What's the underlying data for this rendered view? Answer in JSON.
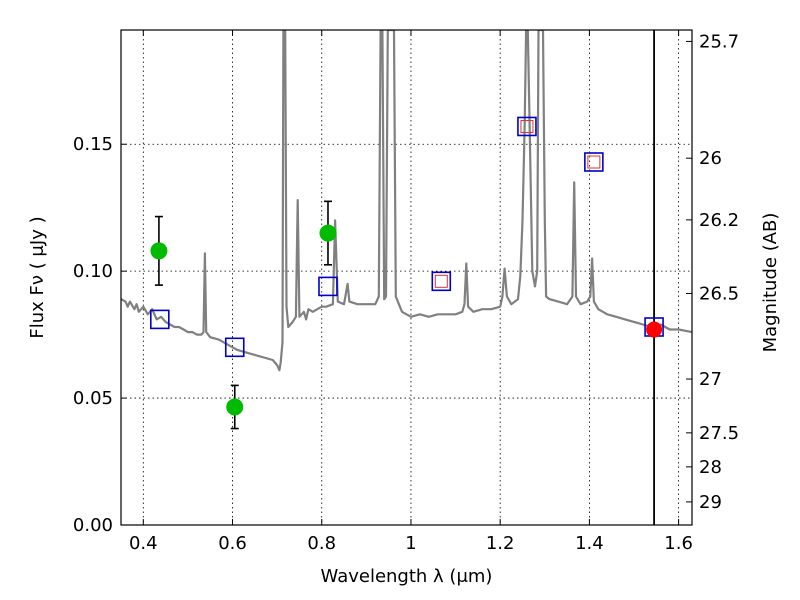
{
  "chart_data": {
    "type": "scatter",
    "xlabel": "Wavelength  λ (μm)",
    "ylabel": "Flux  Fν  ( μJy )",
    "ylabel_right": "Magnitude (AB)",
    "xlim": [
      0.35,
      1.63
    ],
    "ylim": [
      0.0,
      0.195
    ],
    "grid": true,
    "x_ticks": [
      0.4,
      0.6,
      0.8,
      1.0,
      1.2,
      1.4,
      1.6
    ],
    "x_tick_labels": [
      "0.4",
      "0.6",
      "0.8",
      "1",
      "1.2",
      "1.4",
      "1.6"
    ],
    "y_ticks": [
      0.0,
      0.05,
      0.1,
      0.15
    ],
    "y_tick_labels": [
      "0.00",
      "0.05",
      "0.10",
      "0.15"
    ],
    "right_ticks": [
      {
        "label": "25.7",
        "flux": 0.1905
      },
      {
        "label": "26",
        "flux": 0.1445
      },
      {
        "label": "26.2",
        "flux": 0.1202
      },
      {
        "label": "26.5",
        "flux": 0.0912
      },
      {
        "label": "27",
        "flux": 0.0575
      },
      {
        "label": "27.5",
        "flux": 0.0363
      },
      {
        "label": "28",
        "flux": 0.0229
      },
      {
        "label": "29",
        "flux": 0.0091
      }
    ],
    "vertical_line_x": 1.545,
    "observed_points": {
      "color": "#00bb00",
      "points": [
        {
          "x": 0.435,
          "y": 0.108,
          "yerr": 0.0135
        },
        {
          "x": 0.605,
          "y": 0.0465,
          "yerr": 0.0085
        },
        {
          "x": 0.814,
          "y": 0.115,
          "yerr": 0.0125
        }
      ]
    },
    "model_squares": {
      "color": "#0000cc",
      "points": [
        {
          "x": 0.437,
          "y": 0.081
        },
        {
          "x": 0.605,
          "y": 0.07
        },
        {
          "x": 0.814,
          "y": 0.094
        },
        {
          "x": 1.068,
          "y": 0.096
        },
        {
          "x": 1.26,
          "y": 0.157
        },
        {
          "x": 1.41,
          "y": 0.143
        },
        {
          "x": 1.545,
          "y": 0.078
        }
      ]
    },
    "small_red_squares": {
      "color": "#dd3333",
      "points": [
        {
          "x": 1.068,
          "y": 0.096
        },
        {
          "x": 1.26,
          "y": 0.157
        },
        {
          "x": 1.41,
          "y": 0.143
        }
      ]
    },
    "red_point": {
      "x": 1.545,
      "y": 0.077,
      "color": "#ff0000"
    },
    "spectrum": {
      "color": "#808080",
      "points": [
        [
          0.35,
          0.089
        ],
        [
          0.36,
          0.088
        ],
        [
          0.365,
          0.086
        ],
        [
          0.37,
          0.088
        ],
        [
          0.38,
          0.085
        ],
        [
          0.385,
          0.087
        ],
        [
          0.39,
          0.084
        ],
        [
          0.4,
          0.086
        ],
        [
          0.41,
          0.083
        ],
        [
          0.42,
          0.085
        ],
        [
          0.43,
          0.081
        ],
        [
          0.44,
          0.082
        ],
        [
          0.45,
          0.08
        ],
        [
          0.46,
          0.079
        ],
        [
          0.47,
          0.078
        ],
        [
          0.48,
          0.078
        ],
        [
          0.49,
          0.077
        ],
        [
          0.5,
          0.076
        ],
        [
          0.51,
          0.076
        ],
        [
          0.52,
          0.075
        ],
        [
          0.53,
          0.075
        ],
        [
          0.535,
          0.076
        ],
        [
          0.538,
          0.107
        ],
        [
          0.541,
          0.076
        ],
        [
          0.55,
          0.074
        ],
        [
          0.57,
          0.073
        ],
        [
          0.59,
          0.071
        ],
        [
          0.61,
          0.069
        ],
        [
          0.63,
          0.068
        ],
        [
          0.65,
          0.067
        ],
        [
          0.67,
          0.066
        ],
        [
          0.69,
          0.065
        ],
        [
          0.7,
          0.063
        ],
        [
          0.705,
          0.061
        ],
        [
          0.708,
          0.064
        ],
        [
          0.712,
          0.072
        ],
        [
          0.714,
          0.195
        ],
        [
          0.718,
          0.195
        ],
        [
          0.721,
          0.086
        ],
        [
          0.725,
          0.078
        ],
        [
          0.735,
          0.08
        ],
        [
          0.742,
          0.082
        ],
        [
          0.746,
          0.128
        ],
        [
          0.75,
          0.082
        ],
        [
          0.755,
          0.083
        ],
        [
          0.76,
          0.084
        ],
        [
          0.765,
          0.081
        ],
        [
          0.77,
          0.085
        ],
        [
          0.78,
          0.084
        ],
        [
          0.79,
          0.085
        ],
        [
          0.8,
          0.086
        ],
        [
          0.81,
          0.086
        ],
        [
          0.825,
          0.087
        ],
        [
          0.83,
          0.12
        ],
        [
          0.836,
          0.088
        ],
        [
          0.85,
          0.087
        ],
        [
          0.858,
          0.095
        ],
        [
          0.862,
          0.088
        ],
        [
          0.88,
          0.087
        ],
        [
          0.9,
          0.087
        ],
        [
          0.92,
          0.087
        ],
        [
          0.928,
          0.09
        ],
        [
          0.932,
          0.195
        ],
        [
          0.936,
          0.195
        ],
        [
          0.94,
          0.089
        ],
        [
          0.944,
          0.09
        ],
        [
          0.948,
          0.195
        ],
        [
          0.955,
          0.195
        ],
        [
          0.958,
          0.195
        ],
        [
          0.962,
          0.195
        ],
        [
          0.966,
          0.09
        ],
        [
          0.98,
          0.084
        ],
        [
          1.0,
          0.082
        ],
        [
          1.02,
          0.083
        ],
        [
          1.04,
          0.082
        ],
        [
          1.06,
          0.083
        ],
        [
          1.08,
          0.083
        ],
        [
          1.1,
          0.083
        ],
        [
          1.115,
          0.084
        ],
        [
          1.12,
          0.087
        ],
        [
          1.124,
          0.103
        ],
        [
          1.128,
          0.086
        ],
        [
          1.14,
          0.084
        ],
        [
          1.16,
          0.085
        ],
        [
          1.18,
          0.085
        ],
        [
          1.2,
          0.086
        ],
        [
          1.205,
          0.09
        ],
        [
          1.21,
          0.101
        ],
        [
          1.215,
          0.09
        ],
        [
          1.225,
          0.087
        ],
        [
          1.24,
          0.089
        ],
        [
          1.245,
          0.098
        ],
        [
          1.25,
          0.12
        ],
        [
          1.255,
          0.158
        ],
        [
          1.258,
          0.195
        ],
        [
          1.262,
          0.195
        ],
        [
          1.266,
          0.158
        ],
        [
          1.272,
          0.1
        ],
        [
          1.278,
          0.094
        ],
        [
          1.283,
          0.1
        ],
        [
          1.286,
          0.195
        ],
        [
          1.296,
          0.195
        ],
        [
          1.3,
          0.12
        ],
        [
          1.303,
          0.09
        ],
        [
          1.31,
          0.089
        ],
        [
          1.33,
          0.088
        ],
        [
          1.35,
          0.087
        ],
        [
          1.362,
          0.09
        ],
        [
          1.366,
          0.135
        ],
        [
          1.37,
          0.09
        ],
        [
          1.38,
          0.087
        ],
        [
          1.395,
          0.088
        ],
        [
          1.402,
          0.09
        ],
        [
          1.406,
          0.105
        ],
        [
          1.41,
          0.088
        ],
        [
          1.42,
          0.085
        ],
        [
          1.44,
          0.083
        ],
        [
          1.46,
          0.082
        ],
        [
          1.48,
          0.081
        ],
        [
          1.5,
          0.08
        ],
        [
          1.52,
          0.079
        ],
        [
          1.54,
          0.078
        ],
        [
          1.56,
          0.079
        ],
        [
          1.58,
          0.077
        ],
        [
          1.6,
          0.077
        ],
        [
          1.63,
          0.076
        ]
      ]
    }
  }
}
